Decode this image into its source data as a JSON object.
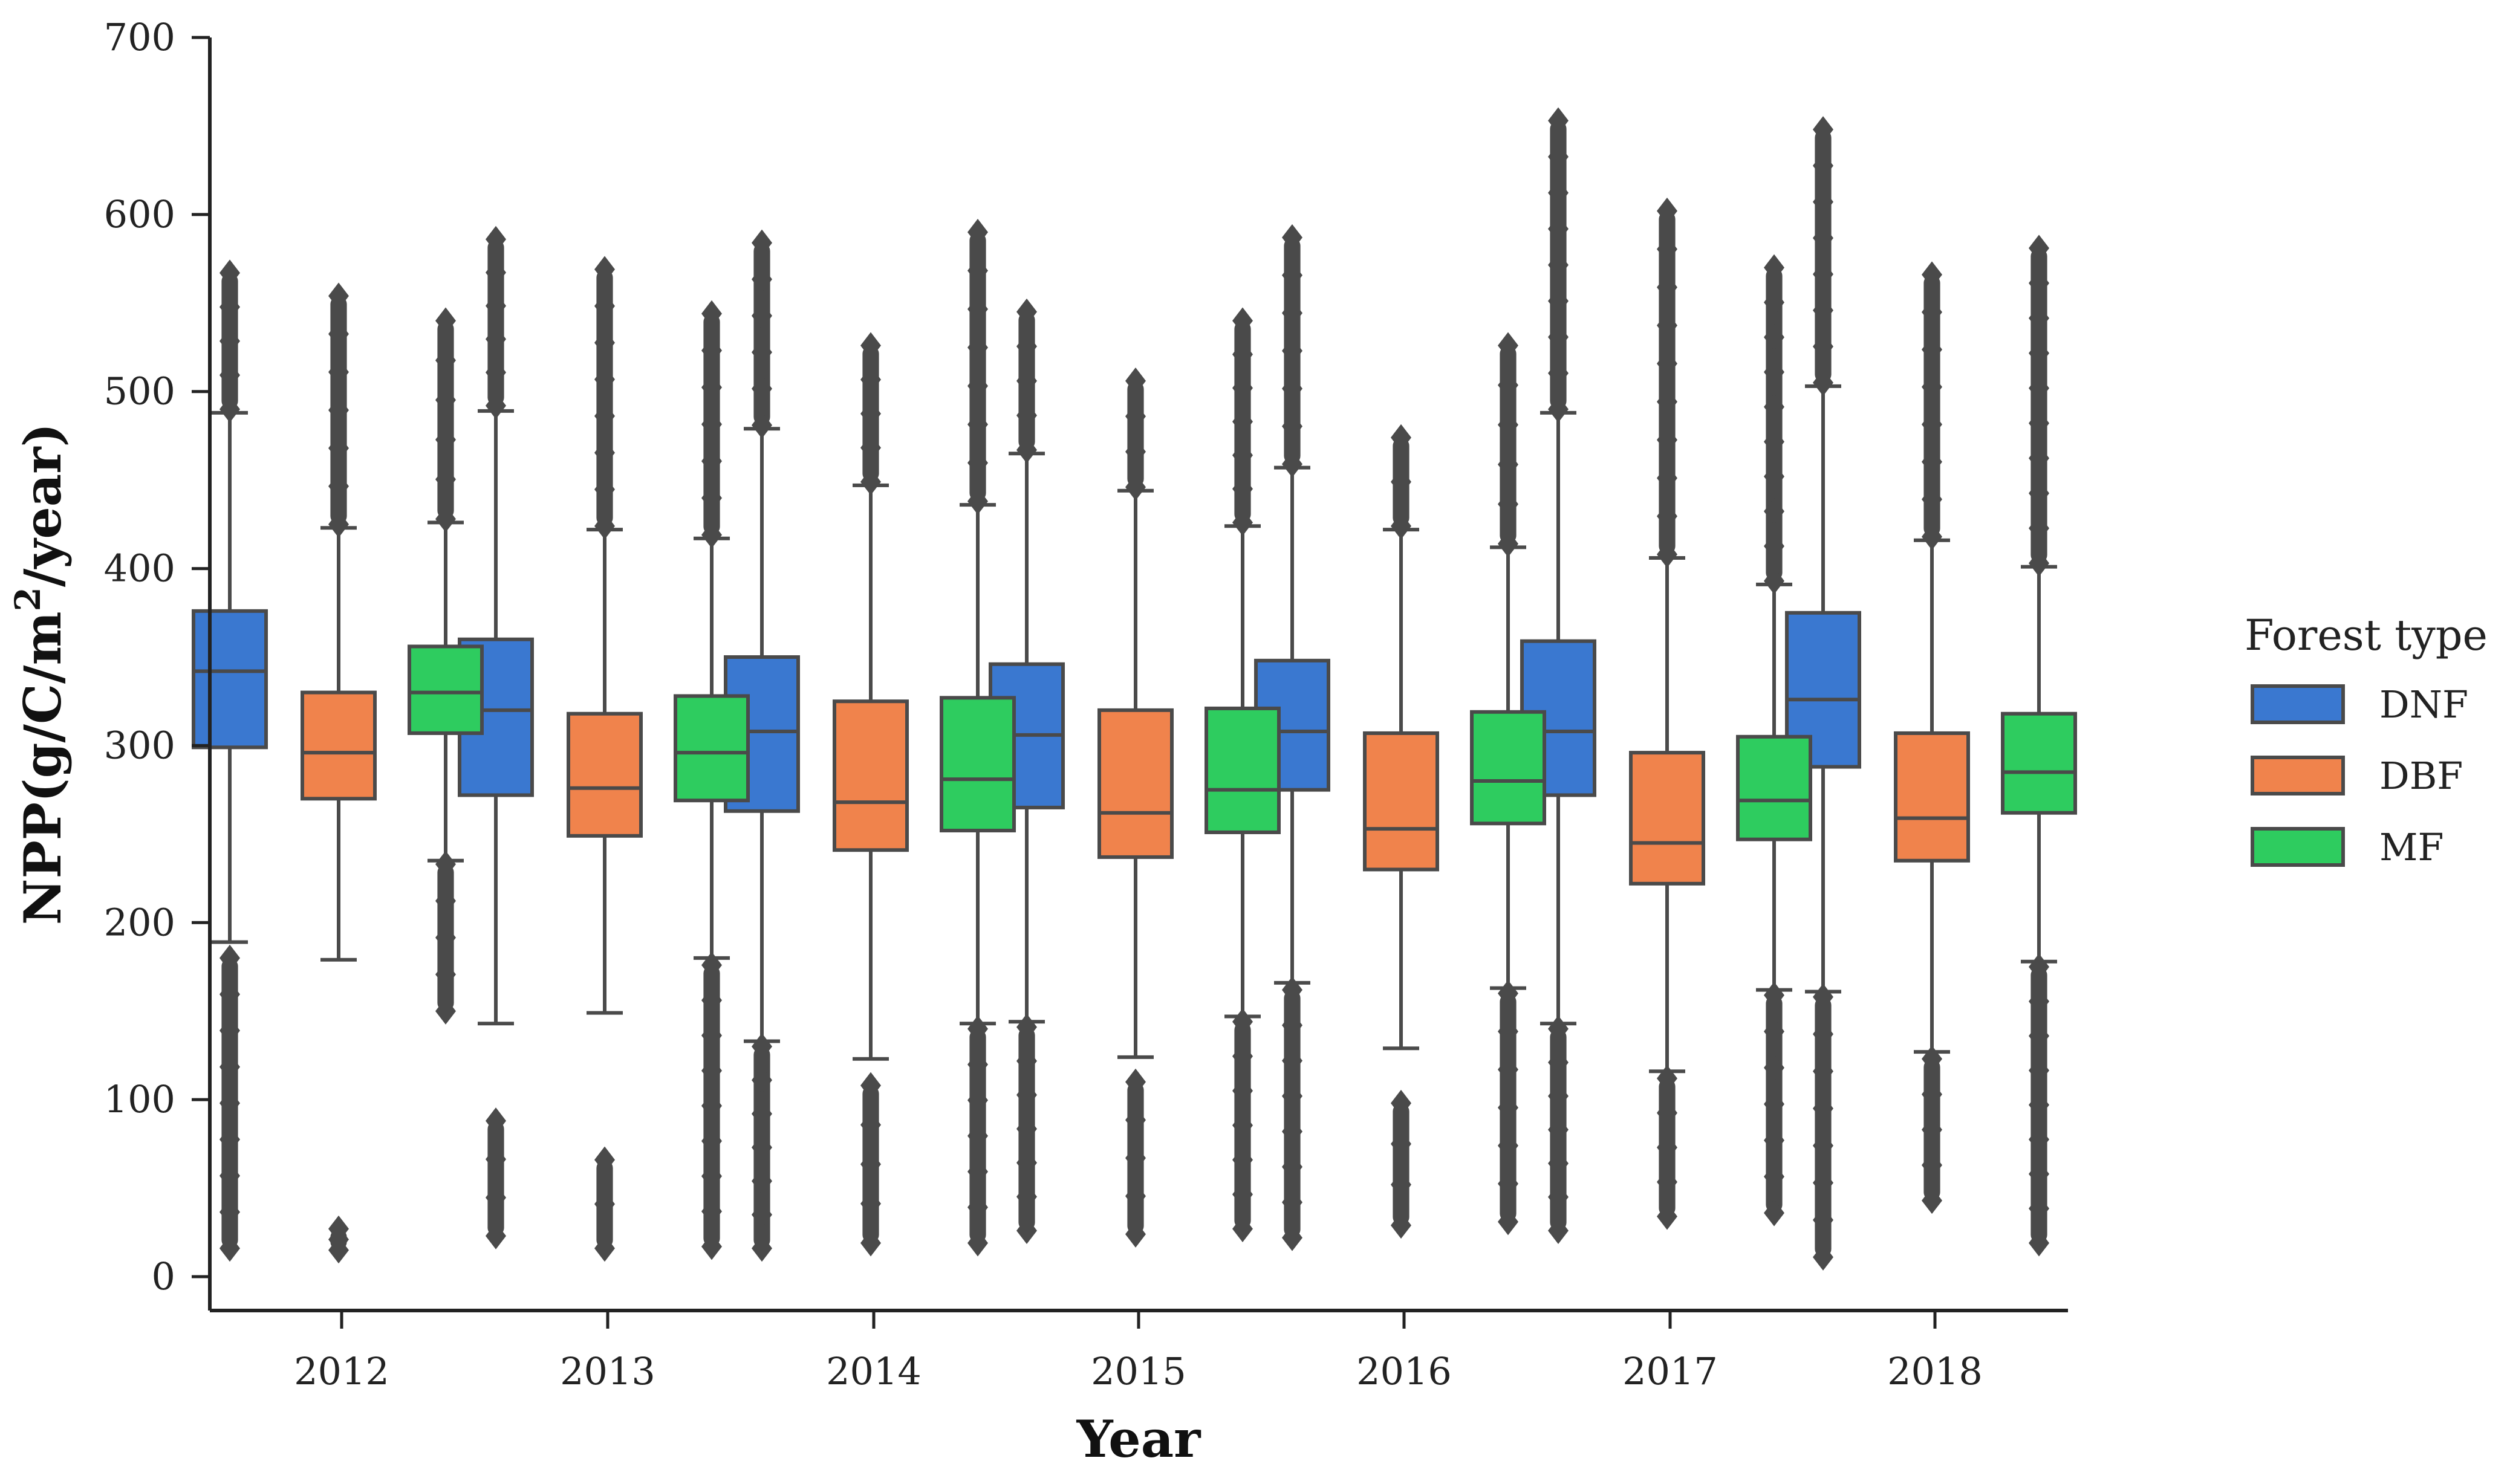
{
  "chart_data": {
    "type": "box",
    "title": "",
    "xlabel": "Year",
    "ylabel": "NPP(g/C/m²/year)",
    "ylabel_parts": {
      "prefix": "NPP(g/C/m",
      "sup": "2",
      "suffix": "/year)"
    },
    "ylim": [
      0,
      700
    ],
    "yticks": [
      0,
      100,
      200,
      300,
      400,
      500,
      600,
      700
    ],
    "categories": [
      "2012",
      "2013",
      "2014",
      "2015",
      "2016",
      "2017",
      "2018"
    ],
    "legend": {
      "title": "Forest type",
      "position": "right"
    },
    "series": [
      {
        "name": "DNF",
        "color": "#3a78d0",
        "boxes": [
          {
            "q1": 299,
            "median": 342,
            "q3": 376,
            "whisker_low": 189,
            "whisker_high": 488,
            "out_low_min": 16,
            "out_low_max": 180,
            "out_high_min": 490,
            "out_high_max": 567
          },
          {
            "q1": 272,
            "median": 320,
            "q3": 360,
            "whisker_low": 143,
            "whisker_high": 489,
            "out_low_min": 23,
            "out_low_max": 88,
            "out_high_min": 492,
            "out_high_max": 586
          },
          {
            "q1": 263,
            "median": 308,
            "q3": 350,
            "whisker_low": 133,
            "whisker_high": 479,
            "out_low_min": 16,
            "out_low_max": 130,
            "out_high_min": 481,
            "out_high_max": 584
          },
          {
            "q1": 265,
            "median": 306,
            "q3": 346,
            "whisker_low": 144,
            "whisker_high": 465,
            "out_low_min": 26,
            "out_low_max": 141,
            "out_high_min": 467,
            "out_high_max": 545
          },
          {
            "q1": 275,
            "median": 308,
            "q3": 348,
            "whisker_low": 166,
            "whisker_high": 457,
            "out_low_min": 22,
            "out_low_max": 162,
            "out_high_min": 459,
            "out_high_max": 587
          },
          {
            "q1": 272,
            "median": 308,
            "q3": 359,
            "whisker_low": 143,
            "whisker_high": 488,
            "out_low_min": 26,
            "out_low_max": 140,
            "out_high_min": 490,
            "out_high_max": 653
          },
          {
            "q1": 288,
            "median": 326,
            "q3": 375,
            "whisker_low": 161,
            "whisker_high": 503,
            "out_low_min": 11,
            "out_low_max": 158,
            "out_high_min": 505,
            "out_high_max": 648
          }
        ]
      },
      {
        "name": "DBF",
        "color": "#f0834c",
        "boxes": [
          {
            "q1": 270,
            "median": 296,
            "q3": 330,
            "whisker_low": 179,
            "whisker_high": 423,
            "out_low_min": 15,
            "out_low_max": 27,
            "out_high_min": 425,
            "out_high_max": 554
          },
          {
            "q1": 249,
            "median": 276,
            "q3": 318,
            "whisker_low": 149,
            "whisker_high": 422,
            "out_low_min": 16,
            "out_low_max": 66,
            "out_high_min": 424,
            "out_high_max": 569
          },
          {
            "q1": 241,
            "median": 268,
            "q3": 325,
            "whisker_low": 123,
            "whisker_high": 447,
            "out_low_min": 19,
            "out_low_max": 108,
            "out_high_min": 449,
            "out_high_max": 526
          },
          {
            "q1": 237,
            "median": 262,
            "q3": 320,
            "whisker_low": 124,
            "whisker_high": 444,
            "out_low_min": 24,
            "out_low_max": 110,
            "out_high_min": 446,
            "out_high_max": 506
          },
          {
            "q1": 230,
            "median": 253,
            "q3": 307,
            "whisker_low": 129,
            "whisker_high": 422,
            "out_low_min": 29,
            "out_low_max": 98,
            "out_high_min": 424,
            "out_high_max": 474
          },
          {
            "q1": 222,
            "median": 245,
            "q3": 296,
            "whisker_low": 116,
            "whisker_high": 406,
            "out_low_min": 34,
            "out_low_max": 112,
            "out_high_min": 408,
            "out_high_max": 602
          },
          {
            "q1": 235,
            "median": 259,
            "q3": 307,
            "whisker_low": 127,
            "whisker_high": 416,
            "out_low_min": 43,
            "out_low_max": 123,
            "out_high_min": 418,
            "out_high_max": 566
          }
        ]
      },
      {
        "name": "MF",
        "color": "#2ecc5f",
        "boxes": [
          {
            "q1": 307,
            "median": 330,
            "q3": 356,
            "whisker_low": 235,
            "whisker_high": 426,
            "out_low_min": 150,
            "out_low_max": 233,
            "out_high_min": 428,
            "out_high_max": 540
          },
          {
            "q1": 269,
            "median": 296,
            "q3": 328,
            "whisker_low": 180,
            "whisker_high": 417,
            "out_low_min": 17,
            "out_low_max": 176,
            "out_high_min": 419,
            "out_high_max": 544
          },
          {
            "q1": 252,
            "median": 281,
            "q3": 327,
            "whisker_low": 143,
            "whisker_high": 436,
            "out_low_min": 19,
            "out_low_max": 140,
            "out_high_min": 438,
            "out_high_max": 590
          },
          {
            "q1": 251,
            "median": 275,
            "q3": 321,
            "whisker_low": 147,
            "whisker_high": 424,
            "out_low_min": 27,
            "out_low_max": 144,
            "out_high_min": 426,
            "out_high_max": 540
          },
          {
            "q1": 256,
            "median": 280,
            "q3": 319,
            "whisker_low": 163,
            "whisker_high": 412,
            "out_low_min": 31,
            "out_low_max": 160,
            "out_high_min": 414,
            "out_high_max": 526
          },
          {
            "q1": 247,
            "median": 269,
            "q3": 305,
            "whisker_low": 162,
            "whisker_high": 391,
            "out_low_min": 36,
            "out_low_max": 159,
            "out_high_min": 393,
            "out_high_max": 570
          },
          {
            "q1": 262,
            "median": 285,
            "q3": 318,
            "whisker_low": 178,
            "whisker_high": 401,
            "out_low_min": 19,
            "out_low_max": 175,
            "out_high_min": 403,
            "out_high_max": 581
          }
        ]
      }
    ]
  }
}
